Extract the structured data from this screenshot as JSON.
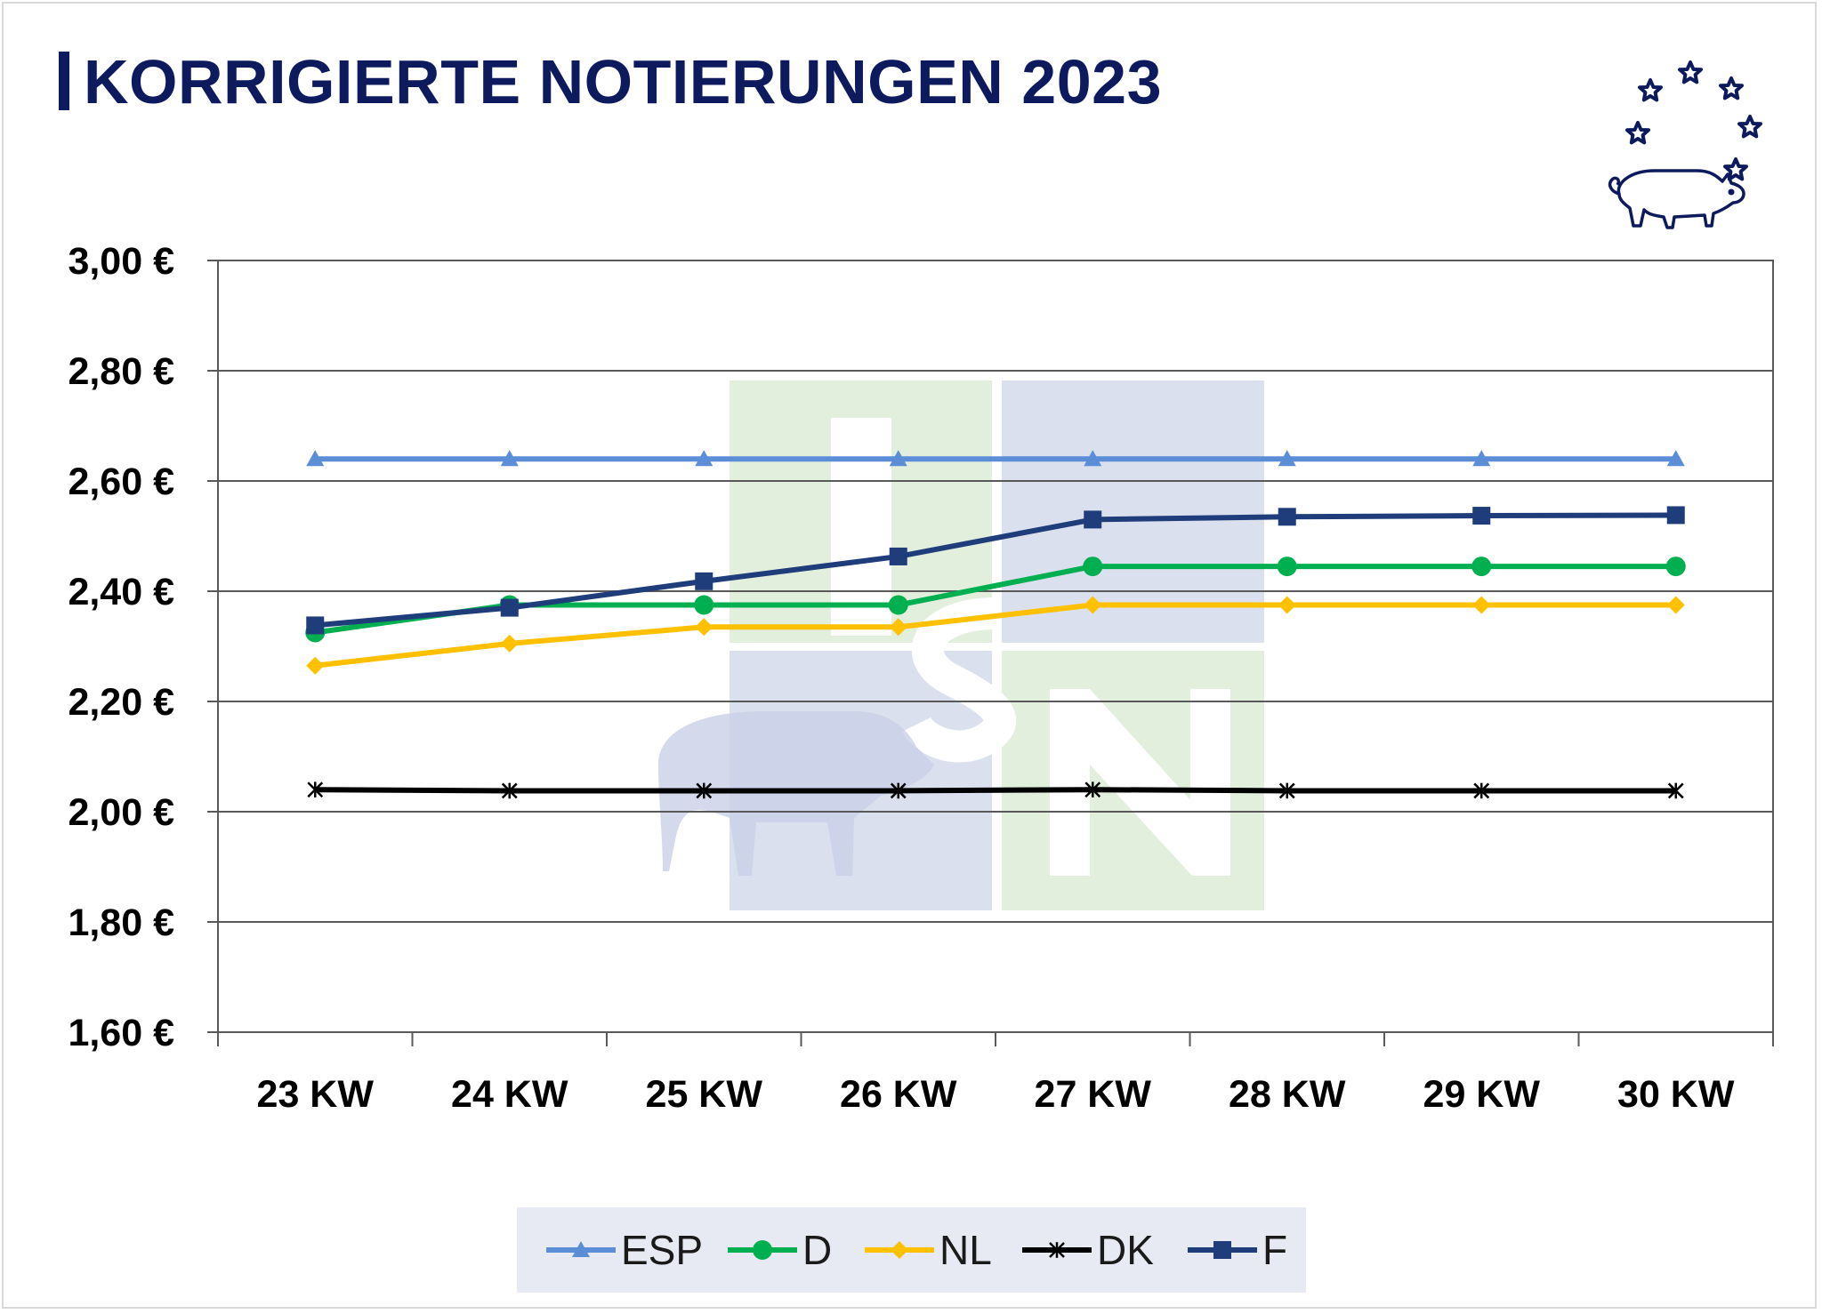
{
  "title": "KORRIGIERTE NOTIERUNGEN 2023",
  "logo_icon": "pig-with-stars-icon",
  "watermark_icon": "isn-logo-watermark",
  "chart_data": {
    "type": "line",
    "title": "KORRIGIERTE NOTIERUNGEN 2023",
    "xlabel": "",
    "ylabel": "",
    "categories": [
      "23 KW",
      "24 KW",
      "25 KW",
      "26 KW",
      "27 KW",
      "28 KW",
      "29 KW",
      "30 KW"
    ],
    "ylim": [
      1.6,
      3.0
    ],
    "yticks": [
      {
        "value": 3.0,
        "label": "3,00 €"
      },
      {
        "value": 2.8,
        "label": "2,80 €"
      },
      {
        "value": 2.6,
        "label": "2,60 €"
      },
      {
        "value": 2.4,
        "label": "2,40 €"
      },
      {
        "value": 2.2,
        "label": "2,20 €"
      },
      {
        "value": 2.0,
        "label": "2,00 €"
      },
      {
        "value": 1.8,
        "label": "1,80 €"
      },
      {
        "value": 1.6,
        "label": "1,60 €"
      }
    ],
    "grid": true,
    "legend_position": "bottom",
    "series": [
      {
        "name": "ESP",
        "color": "#5b8ed6",
        "marker": "triangle",
        "values": [
          2.64,
          2.64,
          2.64,
          2.64,
          2.64,
          2.64,
          2.64,
          2.64
        ]
      },
      {
        "name": "D",
        "color": "#00b050",
        "marker": "circle",
        "values": [
          2.325,
          2.375,
          2.375,
          2.375,
          2.445,
          2.445,
          2.445,
          2.445
        ]
      },
      {
        "name": "NL",
        "color": "#ffc000",
        "marker": "diamond",
        "values": [
          2.265,
          2.305,
          2.335,
          2.335,
          2.375,
          2.375,
          2.375,
          2.375
        ]
      },
      {
        "name": "DK",
        "color": "#000000",
        "marker": "star",
        "values": [
          2.04,
          2.038,
          2.038,
          2.038,
          2.04,
          2.038,
          2.038,
          2.038
        ]
      },
      {
        "name": "F",
        "color": "#1f3d7a",
        "marker": "square",
        "values": [
          2.338,
          2.37,
          2.418,
          2.463,
          2.53,
          2.535,
          2.537,
          2.538
        ]
      }
    ]
  }
}
